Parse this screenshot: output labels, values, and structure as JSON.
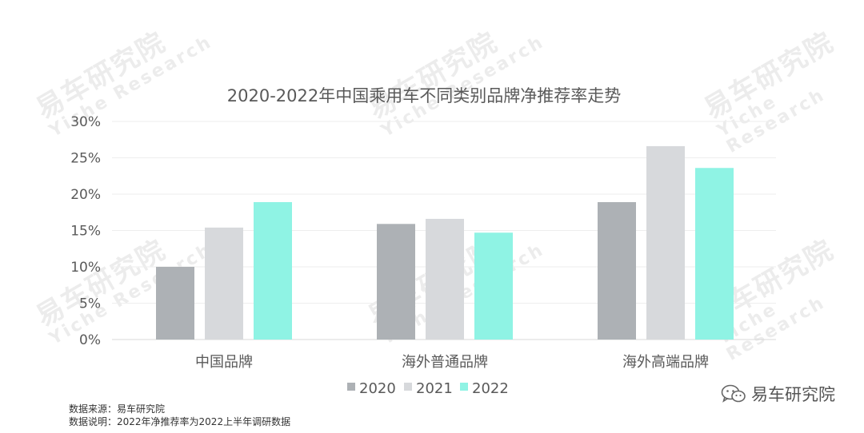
{
  "watermark": {
    "cn": "易车研究院",
    "en": "Yiche Research"
  },
  "chart_data": {
    "type": "bar",
    "title": "2020-2022年中国乘用车不同类别品牌净推荐率走势",
    "categories": [
      "中国品牌",
      "海外普通品牌",
      "海外高端品牌"
    ],
    "series": [
      {
        "name": "2020",
        "values": [
          10,
          15.9,
          18.9
        ]
      },
      {
        "name": "2021",
        "values": [
          15.4,
          16.6,
          26.6
        ]
      },
      {
        "name": "2022",
        "values": [
          18.9,
          14.7,
          23.6
        ]
      }
    ],
    "colors": [
      "#adb1b5",
      "#d7d9dc",
      "#8ff3e4"
    ],
    "ylim": [
      0,
      30
    ],
    "yticks": [
      0,
      5,
      10,
      15,
      20,
      25,
      30
    ],
    "ytick_labels": [
      "0%",
      "5%",
      "10%",
      "15%",
      "20%",
      "25%",
      "30%"
    ],
    "xlabel": "",
    "ylabel": "",
    "grid": true,
    "legend_position": "bottom-center"
  },
  "footer": {
    "source": "数据来源：易车研究院",
    "note": "数据说明：2022年净推荐率为2022上半年调研数据"
  },
  "logo": {
    "text": "易车研究院",
    "icon": "wechat-icon"
  }
}
